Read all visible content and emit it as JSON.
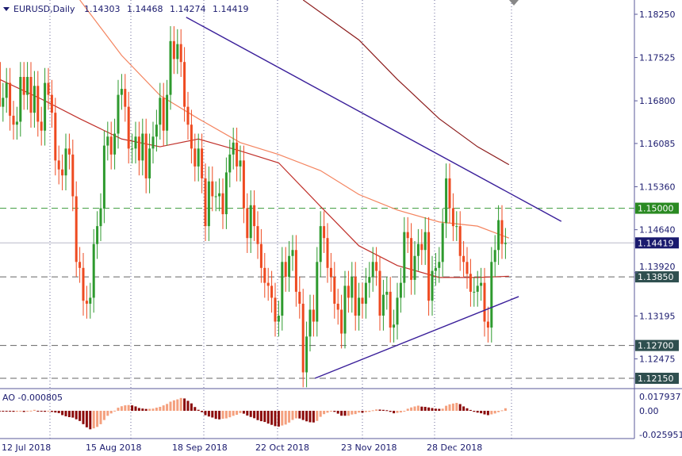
{
  "header": {
    "symbol": "EURUSD,Daily",
    "open": "1.14303",
    "high": "1.14468",
    "low": "1.14274",
    "close": "1.14419"
  },
  "ao_label": "AO -0.000805",
  "colors": {
    "bull": "#2e9a2e",
    "bear": "#ee4a20",
    "ma_fast": "#f4845f",
    "ma_mid": "#c0302a",
    "ma_slow": "#8b1a1a",
    "trend": "#3a1f9a",
    "ao_up": "#f4a07e",
    "ao_down": "#8b0a0a",
    "axis": "#1a1a6e"
  },
  "chart_data": {
    "type": "candlestick",
    "closes": [
      1.1745,
      1.167,
      1.1685,
      1.171,
      1.1655,
      1.164,
      1.1645,
      1.172,
      1.169,
      1.172,
      1.166,
      1.1705,
      1.1645,
      1.163,
      1.171,
      1.169,
      1.166,
      1.158,
      1.1565,
      1.1555,
      1.16,
      1.159,
      1.152,
      1.141,
      1.14,
      1.1345,
      1.134,
      1.135,
      1.144,
      1.147,
      1.15,
      1.1605,
      1.162,
      1.159,
      1.1625,
      1.169,
      1.17,
      1.167,
      1.16,
      1.16,
      1.162,
      1.158,
      1.1625,
      1.155,
      1.16,
      1.162,
      1.164,
      1.1685,
      1.163,
      1.169,
      1.178,
      1.175,
      1.1775,
      1.1745,
      1.167,
      1.164,
      1.16,
      1.157,
      1.16,
      1.155,
      1.147,
      1.1545,
      1.152,
      1.152,
      1.1525,
      1.149,
      1.156,
      1.159,
      1.161,
      1.157,
      1.158,
      1.15,
      1.145,
      1.1505,
      1.147,
      1.144,
      1.14,
      1.1375,
      1.137,
      1.135,
      1.131,
      1.132,
      1.141,
      1.1385,
      1.142,
      1.143,
      1.136,
      1.134,
      1.1225,
      1.1285,
      1.133,
      1.131,
      1.141,
      1.147,
      1.145,
      1.14,
      1.1385,
      1.134,
      1.133,
      1.129,
      1.137,
      1.135,
      1.1385,
      1.132,
      1.135,
      1.134,
      1.1375,
      1.1385,
      1.141,
      1.1395,
      1.132,
      1.1355,
      1.136,
      1.13,
      1.1305,
      1.135,
      1.1375,
      1.146,
      1.145,
      1.138,
      1.142,
      1.144,
      1.143,
      1.146,
      1.1345,
      1.1395,
      1.14,
      1.141,
      1.1475,
      1.155,
      1.15,
      1.147,
      1.147,
      1.142,
      1.141,
      1.139,
      1.136,
      1.136,
      1.137,
      1.1375,
      1.131,
      1.13,
      1.141,
      1.143,
      1.148,
      1.144,
      1.14419
    ],
    "moving_averages": [
      {
        "color_key": "ma_fast",
        "points": [
          [
            24,
            1.1849
          ],
          [
            36,
            1.1756
          ],
          [
            47,
            1.1689
          ],
          [
            58,
            1.165
          ],
          [
            70,
            1.161
          ],
          [
            81,
            1.159
          ],
          [
            93,
            1.1563
          ],
          [
            104,
            1.1523
          ],
          [
            115,
            1.1497
          ],
          [
            127,
            1.1477
          ],
          [
            138,
            1.147
          ],
          [
            147,
            1.145
          ]
        ]
      },
      {
        "color_key": "ma_mid",
        "points": [
          [
            1,
            1.1716
          ],
          [
            13,
            1.1683
          ],
          [
            24,
            1.165
          ],
          [
            36,
            1.1616
          ],
          [
            47,
            1.1603
          ],
          [
            58,
            1.1616
          ],
          [
            70,
            1.1596
          ],
          [
            81,
            1.1576
          ],
          [
            93,
            1.1503
          ],
          [
            104,
            1.1437
          ],
          [
            115,
            1.1404
          ],
          [
            127,
            1.1384
          ],
          [
            138,
            1.1384
          ],
          [
            147,
            1.1386
          ]
        ]
      },
      {
        "color_key": "ma_slow",
        "points": [
          [
            88,
            1.1849
          ],
          [
            104,
            1.1782
          ],
          [
            115,
            1.1716
          ],
          [
            127,
            1.165
          ],
          [
            138,
            1.1603
          ],
          [
            147,
            1.1573
          ]
        ]
      }
    ],
    "trendlines": [
      {
        "from": [
          54.5,
          1.182
        ],
        "to": [
          162,
          1.1478
        ]
      },
      {
        "from": [
          91.4,
          1.1215
        ],
        "to": [
          149.8,
          1.1352
        ]
      }
    ],
    "levels": [
      {
        "price": "1.15000",
        "style": "green-dashed",
        "badge": "#2a8a22"
      },
      {
        "price": "1.13850",
        "style": "gray-dashed",
        "badge": "#2f4f4f"
      },
      {
        "price": "1.12700",
        "style": "gray-dashed",
        "badge": "#2f4f4f"
      },
      {
        "price": "1.12150",
        "style": "gray-dashed",
        "badge": "#2f4f4f"
      },
      {
        "price": "1.14419",
        "style": "current",
        "badge": "#1a1a6e"
      }
    ],
    "y_ticks": [
      "1.18250",
      "1.17525",
      "1.16800",
      "1.16085",
      "1.15360",
      "1.14640",
      "1.13920",
      "1.13195",
      "1.12475"
    ],
    "ao_ticks": [
      "0.017937",
      "0.00",
      "-0.025951"
    ],
    "x_ticks": [
      "12 Jul 2018",
      "15 Aug 2018",
      "18 Sep 2018",
      "22 Oct 2018",
      "23 Nov 2018",
      "28 Dec 2018"
    ]
  }
}
